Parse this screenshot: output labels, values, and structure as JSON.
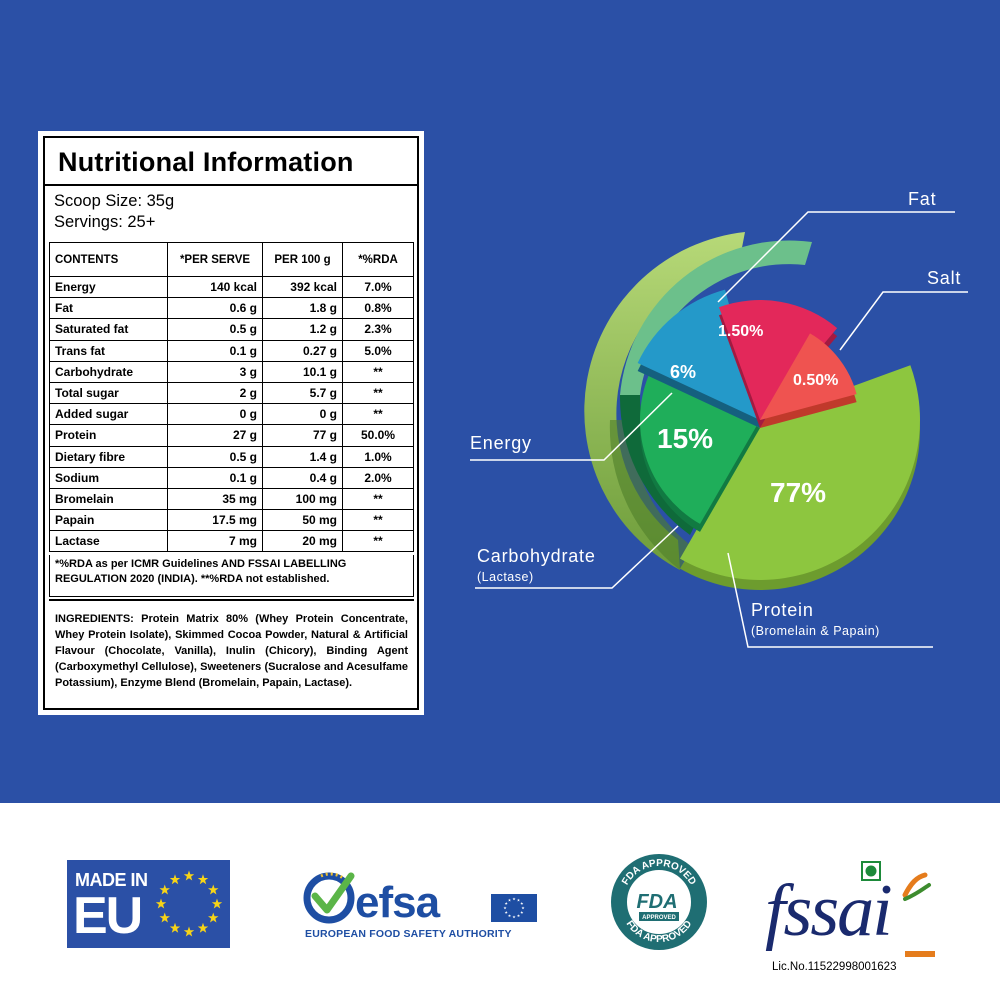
{
  "panel": {
    "title": "Nutritional Information",
    "scoop_size": "Scoop Size: 35g",
    "servings": "Servings: 25+",
    "headers": [
      "CONTENTS",
      "*PER SERVE",
      "PER 100 g",
      "*%RDA"
    ],
    "rows": [
      [
        "Energy",
        "140 kcal",
        "392 kcal",
        "7.0%"
      ],
      [
        "Fat",
        "0.6 g",
        "1.8 g",
        "0.8%"
      ],
      [
        "Saturated fat",
        "0.5 g",
        "1.2 g",
        "2.3%"
      ],
      [
        "Trans fat",
        "0.1 g",
        "0.27 g",
        "5.0%"
      ],
      [
        "Carbohydrate",
        "3 g",
        "10.1 g",
        "**"
      ],
      [
        "Total sugar",
        "2 g",
        "5.7 g",
        "**"
      ],
      [
        "Added sugar",
        "0 g",
        "0 g",
        "**"
      ],
      [
        "Protein",
        "27 g",
        "77 g",
        "50.0%"
      ],
      [
        "Dietary fibre",
        "0.5 g",
        "1.4 g",
        "1.0%"
      ],
      [
        "Sodium",
        "0.1 g",
        "0.4 g",
        "2.0%"
      ],
      [
        "Bromelain",
        "35 mg",
        "100 mg",
        "**"
      ],
      [
        "Papain",
        "17.5 mg",
        "50 mg",
        "**"
      ],
      [
        "Lactase",
        "7 mg",
        "20 mg",
        "**"
      ]
    ],
    "rda_note": "*%RDA as per ICMR Guidelines AND FSSAI LABELLING REGULATION 2020 (INDIA). **%RDA not established.",
    "ingredients": "INGREDIENTS: Protein Matrix 80% (Whey Protein Concentrate, Whey Protein Isolate), Skimmed Cocoa Powder, Natural & Artificial Flavour (Chocolate, Vanilla), Inulin (Chicory), Binding Agent (Carboxymethyl Cellulose), Sweeteners (Sucralose and Acesulfame Potassium), Enzyme Blend (Bromelain, Papain, Lactase)."
  },
  "composition": {
    "labels": {
      "fat": "Fat",
      "salt": "Salt",
      "energy": "Energy",
      "carbohydrate": "Carbohydrate",
      "carbohydrate_sub": "(Lactase)",
      "protein": "Protein",
      "protein_sub": "(Bromelain & Papain)"
    },
    "percent_labels": {
      "fat": "1.50%",
      "salt": "0.50%",
      "energy": "6%",
      "carbohydrate": "15%",
      "protein": "77%"
    }
  },
  "chart_data": {
    "type": "pie",
    "categories": [
      "Protein",
      "Carbohydrate",
      "Energy",
      "Fat",
      "Salt"
    ],
    "values": [
      77,
      15,
      6,
      1.5,
      0.5
    ],
    "colors": [
      "#8cc63f",
      "#1fae5a",
      "#2499c9",
      "#e3285a",
      "#ef5350"
    ]
  },
  "logos": {
    "eu_line1": "MADE IN",
    "eu_line2": "EU",
    "efsa_word": "efsa",
    "efsa_sub": "EUROPEAN FOOD SAFETY AUTHORITY",
    "fda_top": "FDA APPROVED",
    "fda_center": "FDA",
    "fda_bottom": "FDA APPROVED",
    "fda_badge": "APPROVED",
    "fssai_word": "fssai",
    "fssai_license": "Lic.No.11522998001623"
  },
  "colors": {
    "background_blue": "#2b50a6",
    "protein_green": "#8cc63f",
    "carb_green": "#1fae5a",
    "energy_blue": "#2499c9",
    "fat_red": "#e3285a",
    "salt_red": "#ef5350"
  }
}
